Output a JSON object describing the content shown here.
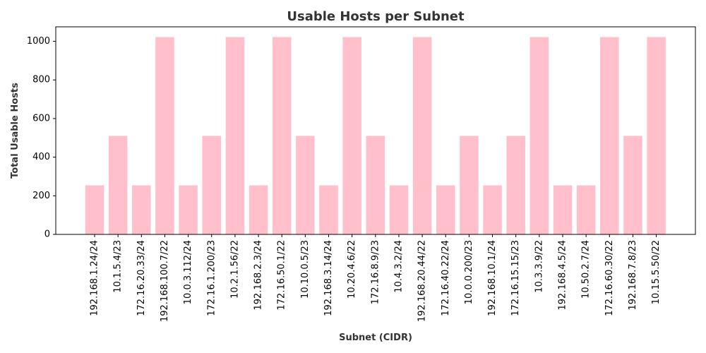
{
  "chart_data": {
    "type": "bar",
    "title": "Usable Hosts per Subnet",
    "xlabel": "Subnet (CIDR)",
    "ylabel": "Total Usable Hosts",
    "ylim": [
      0,
      1075
    ],
    "yticks": [
      0,
      200,
      400,
      600,
      800,
      1000
    ],
    "bar_color": "#ffc0cb",
    "grid": false,
    "categories": [
      "192.168.1.24/24",
      "10.1.5.4/23",
      "172.16.20.33/24",
      "192.168.100.7/22",
      "10.0.3.112/24",
      "172.16.1.200/23",
      "10.2.1.56/22",
      "192.168.2.3/24",
      "172.16.50.1/22",
      "10.10.0.5/23",
      "192.168.3.14/24",
      "10.20.4.6/22",
      "172.16.8.9/23",
      "10.4.3.2/24",
      "192.168.20.44/22",
      "172.16.40.22/24",
      "10.0.0.200/23",
      "192.168.10.1/24",
      "172.16.15.15/23",
      "10.3.3.9/22",
      "192.168.4.5/24",
      "10.50.2.7/24",
      "172.16.60.30/22",
      "192.168.7.8/23",
      "10.15.5.50/22"
    ],
    "values": [
      254,
      510,
      254,
      1022,
      254,
      510,
      1022,
      254,
      1022,
      510,
      254,
      1022,
      510,
      254,
      1022,
      254,
      510,
      254,
      510,
      1022,
      254,
      254,
      1022,
      510,
      1022
    ]
  }
}
